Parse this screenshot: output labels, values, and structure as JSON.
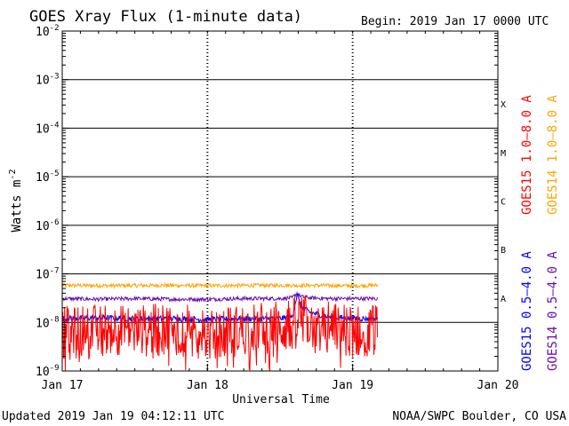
{
  "header": {
    "title": "GOES Xray Flux (1-minute data)",
    "begin": "Begin:  2019 Jan 17 0000 UTC"
  },
  "footer": {
    "updated": "Updated 2019 Jan 19 04:12:11 UTC",
    "credit": "NOAA/SWPC Boulder, CO USA"
  },
  "colors": {
    "goes15_long": "#ff0000",
    "goes14_long": "#ffa500",
    "goes15_short": "#0000ff",
    "goes14_short": "#6a0dad",
    "frame": "#000000"
  },
  "chart_data": {
    "type": "line",
    "title": "GOES Xray Flux (1-minute data)",
    "xlabel": "Universal Time",
    "ylabel": "Watts m",
    "ylabel_exp": "-2",
    "yscale": "log",
    "ylim": [
      1e-09,
      0.01
    ],
    "xlim": [
      0,
      72
    ],
    "x_units": "hours since 2019 Jan 17 0000 UTC",
    "y_ticks": [
      {
        "base": "10",
        "exp": "-9",
        "value": 1e-09
      },
      {
        "base": "10",
        "exp": "-8",
        "value": 1e-08
      },
      {
        "base": "10",
        "exp": "-7",
        "value": 1e-07
      },
      {
        "base": "10",
        "exp": "-6",
        "value": 1e-06
      },
      {
        "base": "10",
        "exp": "-5",
        "value": 1e-05
      },
      {
        "base": "10",
        "exp": "-4",
        "value": 0.0001
      },
      {
        "base": "10",
        "exp": "-3",
        "value": 0.001
      },
      {
        "base": "10",
        "exp": "-2",
        "value": 0.01
      }
    ],
    "x_ticks": [
      {
        "label": "Jan 17",
        "value": 0
      },
      {
        "label": "Jan 18",
        "value": 24
      },
      {
        "label": "Jan 19",
        "value": 48
      },
      {
        "label": "Jan 20",
        "value": 72
      }
    ],
    "flare_classes": [
      {
        "label": "A",
        "value": 3.16e-08
      },
      {
        "label": "B",
        "value": 3.16e-07
      },
      {
        "label": "C",
        "value": 3.16e-06
      },
      {
        "label": "M",
        "value": 3.16e-05
      },
      {
        "label": "X",
        "value": 0.000316
      }
    ],
    "series": [
      {
        "name": "GOES15 1.0-8.0 A",
        "key": "goes15_long",
        "x": [
          0,
          2,
          4,
          6,
          8,
          10,
          12,
          14,
          16,
          18,
          20,
          22,
          24,
          26,
          28,
          30,
          32,
          34,
          36,
          38,
          39.5,
          40,
          42,
          44,
          46,
          48,
          50,
          52.2
        ],
        "y": [
          6.5e-09,
          6e-09,
          6.8e-09,
          7e-09,
          7.5e-09,
          7.2e-09,
          6.5e-09,
          6.8e-09,
          7e-09,
          7.5e-09,
          7e-09,
          6.5e-09,
          5.5e-09,
          5.8e-09,
          6.5e-09,
          7e-09,
          7.5e-09,
          8e-09,
          8.2e-09,
          8.5e-09,
          1.3e-08,
          1.1e-08,
          9e-09,
          8e-09,
          7.5e-09,
          6.5e-09,
          6.8e-09,
          7e-09
        ]
      },
      {
        "name": "GOES14 1.0-8.0 A",
        "key": "goes14_long",
        "x": [
          0,
          8,
          16,
          24,
          32,
          40,
          48,
          52.2
        ],
        "y": [
          5.8e-08,
          5.7e-08,
          5.8e-08,
          5.7e-08,
          5.8e-08,
          5.8e-08,
          5.7e-08,
          5.8e-08
        ]
      },
      {
        "name": "GOES15 0.5-4.0 A",
        "key": "goes15_short",
        "x": [
          0,
          6,
          12,
          18,
          24,
          30,
          36,
          38,
          38.8,
          39.5,
          41,
          44,
          48,
          52.2
        ],
        "y": [
          1.2e-08,
          1.25e-08,
          1.2e-08,
          1.2e-08,
          1.15e-08,
          1.2e-08,
          1.2e-08,
          1.3e-08,
          3.6e-08,
          2.1e-08,
          1.6e-08,
          1.3e-08,
          1.2e-08,
          1.2e-08
        ]
      },
      {
        "name": "GOES14 0.5-4.0 A",
        "key": "goes14_short",
        "x": [
          0,
          6,
          12,
          18,
          24,
          30,
          36,
          38,
          38.8,
          39.5,
          41,
          44,
          48,
          52.2
        ],
        "y": [
          3.1e-08,
          3e-08,
          3.1e-08,
          3e-08,
          3e-08,
          3.1e-08,
          3.1e-08,
          3.2e-08,
          4e-08,
          3.4e-08,
          3.2e-08,
          3.1e-08,
          3.1e-08,
          3.1e-08
        ]
      }
    ],
    "legend": [
      {
        "label": "GOES15 1.0–8.0 A",
        "key": "goes15_long"
      },
      {
        "label": "GOES14 1.0–8.0 A",
        "key": "goes14_long"
      },
      {
        "label": "GOES15 0.5–4.0 A",
        "key": "goes15_short"
      },
      {
        "label": "GOES14 0.5–4.0 A",
        "key": "goes14_short"
      }
    ]
  }
}
